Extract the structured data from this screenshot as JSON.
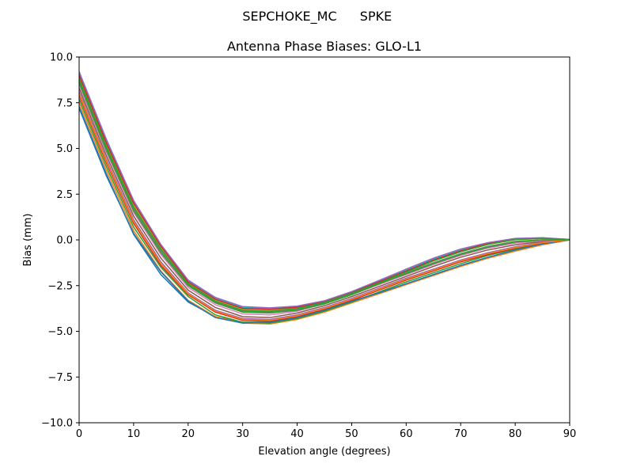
{
  "figure": {
    "suptitle_left": "SEPCHOKE_MC",
    "suptitle_right": "SPKE"
  },
  "chart_data": {
    "type": "line",
    "title": "Antenna Phase Biases: GLO-L1",
    "xlabel": "Elevation angle (degrees)",
    "ylabel": "Bias (mm)",
    "xlim": [
      0,
      90
    ],
    "ylim": [
      -10,
      10
    ],
    "x_ticks": [
      0,
      10,
      20,
      30,
      40,
      50,
      60,
      70,
      80,
      90
    ],
    "x_tick_labels": [
      "0",
      "10",
      "20",
      "30",
      "40",
      "50",
      "60",
      "70",
      "80",
      "90"
    ],
    "y_ticks": [
      -10,
      -7.5,
      -5,
      -2.5,
      0,
      2.5,
      5,
      7.5,
      10
    ],
    "y_tick_labels": [
      "−10.0",
      "−7.5",
      "−5.0",
      "−2.5",
      "0.0",
      "2.5",
      "5.0",
      "7.5",
      "10.0"
    ],
    "grid": false,
    "legend": "none",
    "x": [
      0,
      5,
      10,
      15,
      20,
      25,
      30,
      35,
      40,
      45,
      50,
      55,
      60,
      65,
      70,
      75,
      80,
      85,
      90
    ],
    "series": [
      {
        "color": "#1f77b4",
        "values": [
          7.3,
          3.6,
          0.3,
          -1.9,
          -3.4,
          -4.2,
          -4.5,
          -4.5,
          -4.3,
          -3.9,
          -3.4,
          -2.9,
          -2.4,
          -1.9,
          -1.4,
          -0.95,
          -0.6,
          -0.25,
          0.0
        ]
      },
      {
        "color": "#ff7f0e",
        "values": [
          7.5,
          3.8,
          0.5,
          -1.7,
          -3.3,
          -4.2,
          -4.55,
          -4.6,
          -4.35,
          -3.95,
          -3.45,
          -2.95,
          -2.45,
          -1.95,
          -1.45,
          -1.0,
          -0.62,
          -0.27,
          0.0
        ]
      },
      {
        "color": "#2ca02c",
        "values": [
          7.7,
          4.0,
          0.7,
          -1.5,
          -3.1,
          -4.1,
          -4.5,
          -4.55,
          -4.3,
          -3.9,
          -3.4,
          -2.85,
          -2.3,
          -1.8,
          -1.3,
          -0.85,
          -0.5,
          -0.2,
          0.0
        ]
      },
      {
        "color": "#d62728",
        "values": [
          7.9,
          4.2,
          0.9,
          -1.4,
          -3.0,
          -3.95,
          -4.4,
          -4.45,
          -4.2,
          -3.8,
          -3.3,
          -2.75,
          -2.2,
          -1.7,
          -1.2,
          -0.8,
          -0.45,
          -0.17,
          0.0
        ]
      },
      {
        "color": "#9467bd",
        "values": [
          8.1,
          4.4,
          1.1,
          -1.2,
          -2.9,
          -3.85,
          -4.3,
          -4.35,
          -4.1,
          -3.7,
          -3.2,
          -2.65,
          -2.1,
          -1.6,
          -1.1,
          -0.7,
          -0.38,
          -0.13,
          0.0
        ]
      },
      {
        "color": "#8c564b",
        "values": [
          8.3,
          4.6,
          1.3,
          -1.0,
          -2.75,
          -3.7,
          -4.2,
          -4.25,
          -4.0,
          -3.6,
          -3.1,
          -2.55,
          -2.0,
          -1.45,
          -0.95,
          -0.55,
          -0.27,
          -0.08,
          0.0
        ]
      },
      {
        "color": "#e377c2",
        "values": [
          8.5,
          4.8,
          1.5,
          -0.8,
          -2.6,
          -3.55,
          -4.05,
          -4.1,
          -3.9,
          -3.5,
          -3.0,
          -2.45,
          -1.9,
          -1.35,
          -0.85,
          -0.45,
          -0.18,
          -0.04,
          0.0
        ]
      },
      {
        "color": "#7f7f7f",
        "values": [
          8.7,
          5.0,
          1.7,
          -0.6,
          -2.45,
          -3.4,
          -3.9,
          -3.95,
          -3.8,
          -3.45,
          -2.95,
          -2.4,
          -1.8,
          -1.25,
          -0.75,
          -0.35,
          -0.08,
          0.0,
          0.0
        ]
      },
      {
        "color": "#bcbd22",
        "values": [
          8.9,
          5.2,
          1.9,
          -0.45,
          -2.35,
          -3.3,
          -3.8,
          -3.85,
          -3.7,
          -3.4,
          -2.9,
          -2.35,
          -1.75,
          -1.15,
          -0.65,
          -0.25,
          0.0,
          0.07,
          0.02
        ]
      },
      {
        "color": "#17becf",
        "values": [
          9.1,
          5.4,
          2.1,
          -0.3,
          -2.25,
          -3.2,
          -3.7,
          -3.75,
          -3.65,
          -3.35,
          -2.85,
          -2.25,
          -1.65,
          -1.05,
          -0.55,
          -0.18,
          0.06,
          0.11,
          0.02
        ]
      },
      {
        "color": "#1f77b4",
        "values": [
          7.2,
          3.5,
          0.35,
          -1.75,
          -3.35,
          -4.25,
          -4.55,
          -4.5,
          -4.25,
          -3.85,
          -3.35,
          -2.9,
          -2.4,
          -1.9,
          -1.4,
          -0.95,
          -0.55,
          -0.22,
          0.0
        ]
      },
      {
        "color": "#ff7f0e",
        "values": [
          8.0,
          4.3,
          1.0,
          -1.3,
          -2.95,
          -3.9,
          -4.35,
          -4.4,
          -4.15,
          -3.75,
          -3.25,
          -2.7,
          -2.15,
          -1.65,
          -1.15,
          -0.75,
          -0.42,
          -0.15,
          0.0
        ]
      },
      {
        "color": "#2ca02c",
        "values": [
          8.6,
          4.9,
          1.6,
          -0.7,
          -2.5,
          -3.45,
          -3.95,
          -4.0,
          -3.85,
          -3.5,
          -3.0,
          -2.4,
          -1.85,
          -1.3,
          -0.8,
          -0.4,
          -0.12,
          0.0,
          0.0
        ]
      },
      {
        "color": "#d62728",
        "values": [
          9.0,
          5.3,
          2.0,
          -0.35,
          -2.3,
          -3.25,
          -3.75,
          -3.8,
          -3.68,
          -3.37,
          -2.87,
          -2.3,
          -1.7,
          -1.1,
          -0.6,
          -0.2,
          0.04,
          0.1,
          0.02
        ]
      },
      {
        "color": "#9467bd",
        "values": [
          9.2,
          5.5,
          2.15,
          -0.25,
          -2.2,
          -3.15,
          -3.65,
          -3.72,
          -3.62,
          -3.33,
          -2.83,
          -2.22,
          -1.6,
          -1.0,
          -0.5,
          -0.15,
          0.08,
          0.12,
          0.02
        ]
      },
      {
        "color": "#2ca02c",
        "values": [
          8.8,
          5.1,
          1.8,
          -0.5,
          -2.4,
          -3.35,
          -3.85,
          -3.9,
          -3.75,
          -3.42,
          -2.92,
          -2.35,
          -1.75,
          -1.15,
          -0.65,
          -0.25,
          0.02,
          0.08,
          0.02
        ]
      }
    ]
  }
}
